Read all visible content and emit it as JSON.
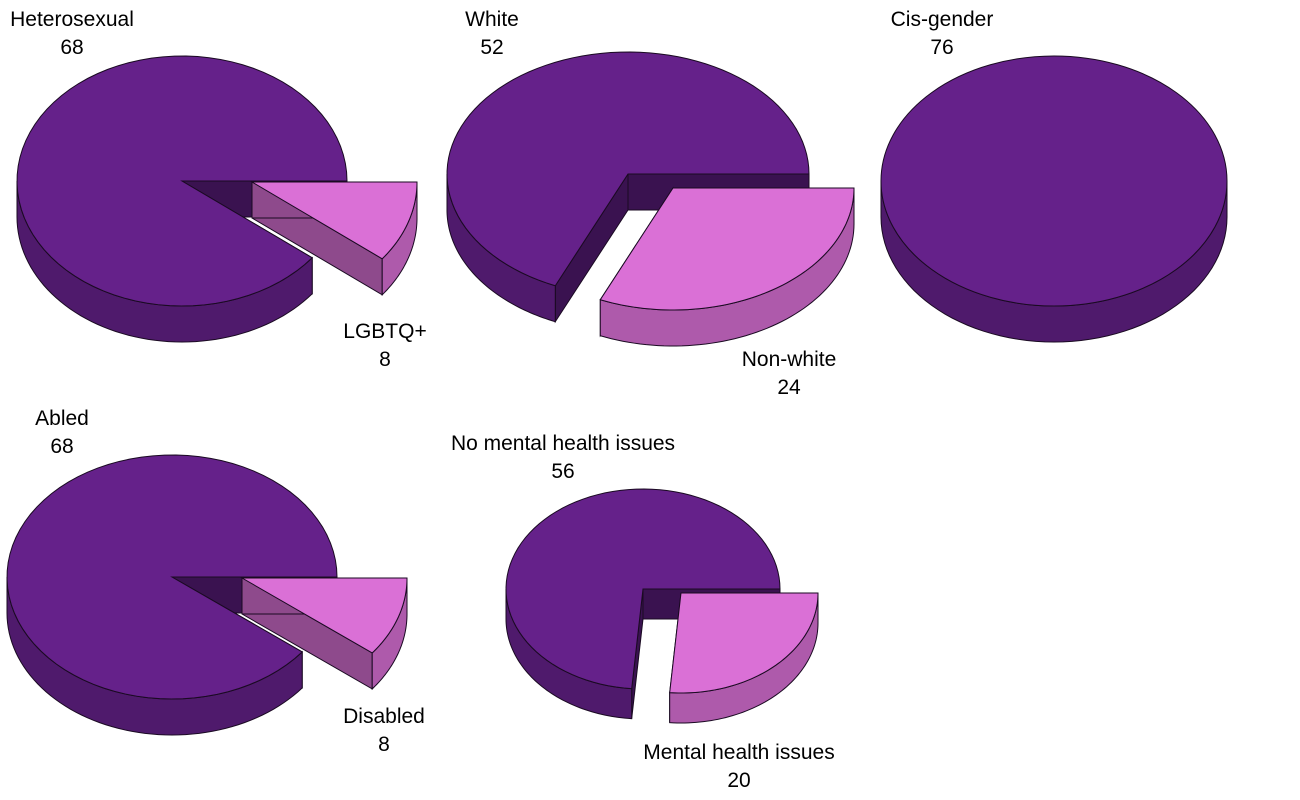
{
  "colors": {
    "main_top": "#65218A",
    "main_side": "#4F1A6C",
    "main_inner": "#3A1250",
    "minor_top": "#DA70D6",
    "minor_side": "#AE5AAB",
    "minor_inner": "#8E4A8C",
    "outline": "#1a0a22"
  },
  "chart_data": [
    {
      "type": "pie",
      "slices": [
        {
          "label": "Heterosexual",
          "value": 68,
          "display": "68",
          "color_key": "main"
        },
        {
          "label": "LGBTQ+",
          "value": 8,
          "display": "8",
          "color_key": "minor",
          "exploded": true
        }
      ]
    },
    {
      "type": "pie",
      "slices": [
        {
          "label": "White",
          "value": 52,
          "display": "52",
          "color_key": "main"
        },
        {
          "label": "Non-white",
          "value": 24,
          "display": "24",
          "color_key": "minor",
          "exploded": true
        }
      ]
    },
    {
      "type": "pie",
      "slices": [
        {
          "label": "Cis-gender",
          "value": 76,
          "display": "76",
          "color_key": "main"
        }
      ]
    },
    {
      "type": "pie",
      "slices": [
        {
          "label": "Abled",
          "value": 68,
          "display": "68",
          "color_key": "main"
        },
        {
          "label": "Disabled",
          "value": 8,
          "display": "8",
          "color_key": "minor",
          "exploded": true
        }
      ]
    },
    {
      "type": "pie",
      "slices": [
        {
          "label": "No mental health issues",
          "value": 56,
          "display": "56",
          "color_key": "main"
        },
        {
          "label": "Mental health issues",
          "value": 20,
          "display": "20",
          "color_key": "minor",
          "exploded": true
        }
      ]
    }
  ]
}
